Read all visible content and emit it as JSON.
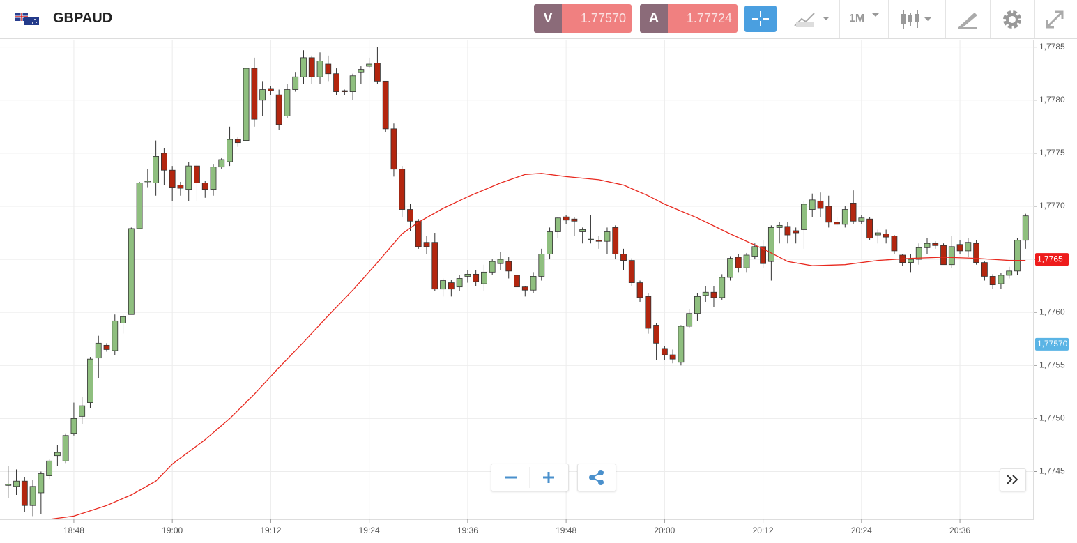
{
  "toolbar": {
    "symbol": "GBPAUD",
    "sell": {
      "letter": "V",
      "price": "1.77570"
    },
    "buy": {
      "letter": "A",
      "price": "1.77724"
    },
    "timeframe": "1M"
  },
  "chart_data": {
    "type": "candlestick",
    "x": [
      "18:40",
      "18:41",
      "18:42",
      "18:43",
      "18:44",
      "18:45",
      "18:46",
      "18:47",
      "18:48",
      "18:49",
      "18:50",
      "18:51",
      "18:52",
      "18:53",
      "18:54",
      "18:55",
      "18:56",
      "18:57",
      "18:58",
      "18:59",
      "19:00",
      "19:01",
      "19:02",
      "19:03",
      "19:04",
      "19:05",
      "19:06",
      "19:07",
      "19:08",
      "19:09",
      "19:10",
      "19:11",
      "19:12",
      "19:13",
      "19:14",
      "19:15",
      "19:16",
      "19:17",
      "19:18",
      "19:19",
      "19:20",
      "19:21",
      "19:22",
      "19:23",
      "19:24",
      "19:25",
      "19:26",
      "19:27",
      "19:28",
      "19:29",
      "19:30",
      "19:31",
      "19:32",
      "19:33",
      "19:34",
      "19:35",
      "19:36",
      "19:37",
      "19:38",
      "19:39",
      "19:40",
      "19:41",
      "19:42",
      "19:43",
      "19:44",
      "19:45",
      "19:46",
      "19:47",
      "19:48",
      "19:49",
      "19:50",
      "19:51",
      "19:52",
      "19:53",
      "19:54",
      "19:55",
      "19:56",
      "19:57",
      "19:58",
      "19:59",
      "20:00",
      "20:01",
      "20:02",
      "20:03",
      "20:04",
      "20:05",
      "20:06",
      "20:07",
      "20:08",
      "20:09",
      "20:10",
      "20:11",
      "20:12",
      "20:13",
      "20:14",
      "20:15",
      "20:16",
      "20:17",
      "20:18",
      "20:19",
      "20:20",
      "20:21",
      "20:22",
      "20:23",
      "20:24",
      "20:25",
      "20:26",
      "20:27",
      "20:28",
      "20:29",
      "20:30",
      "20:31",
      "20:32",
      "20:33",
      "20:34",
      "20:35",
      "20:36",
      "20:37",
      "20:38",
      "20:39",
      "20:40",
      "20:41",
      "20:42",
      "20:43",
      "20:44"
    ],
    "open": [
      1.77437,
      1.77436,
      1.77441,
      1.77418,
      1.7743,
      1.77446,
      1.77465,
      1.7746,
      1.77486,
      1.77502,
      1.77515,
      1.77557,
      1.77569,
      1.77564,
      1.7759,
      1.77598,
      1.77679,
      1.77723,
      1.77722,
      1.7775,
      1.77734,
      1.7772,
      1.77716,
      1.77738,
      1.77722,
      1.77716,
      1.77737,
      1.77742,
      1.77763,
      1.77762,
      1.7783,
      1.778,
      1.77811,
      1.77805,
      1.77785,
      1.7781,
      1.77822,
      1.7784,
      1.77822,
      1.77834,
      1.77825,
      1.77809,
      1.77808,
      1.77826,
      1.77832,
      1.77835,
      1.77818,
      1.77773,
      1.77735,
      1.77697,
      1.77686,
      1.77666,
      1.77666,
      1.77622,
      1.77628,
      1.77624,
      1.77634,
      1.77636,
      1.77627,
      1.77638,
      1.77646,
      1.77648,
      1.77635,
      1.77624,
      1.77621,
      1.77634,
      1.77655,
      1.77676,
      1.7769,
      1.77688,
      1.77676,
      1.77669,
      1.77668,
      1.77667,
      1.7768,
      1.77655,
      1.77649,
      1.77628,
      1.77615,
      1.77588,
      1.77566,
      1.7756,
      1.77553,
      1.77587,
      1.77599,
      1.77616,
      1.77619,
      1.77614,
      1.77633,
      1.77652,
      1.77642,
      1.77653,
      1.77662,
      1.77648,
      1.7768,
      1.77681,
      1.77677,
      1.77678,
      1.77697,
      1.77705,
      1.777,
      1.77685,
      1.77683,
      1.77703,
      1.77686,
      1.77688,
      1.77673,
      1.77674,
      1.77672,
      1.77654,
      1.77647,
      1.7765,
      1.77661,
      1.77665,
      1.77663,
      1.77645,
      1.77664,
      1.77658,
      1.77665,
      1.77647,
      1.77634,
      1.77627,
      1.77635,
      1.77639,
      1.77668
    ],
    "high": [
      1.77455,
      1.77452,
      1.77445,
      1.77442,
      1.7745,
      1.77462,
      1.77475,
      1.77486,
      1.77515,
      1.7752,
      1.77558,
      1.77578,
      1.77571,
      1.77598,
      1.77598,
      1.7768,
      1.77723,
      1.77735,
      1.77762,
      1.77755,
      1.77738,
      1.77723,
      1.77742,
      1.7774,
      1.77724,
      1.7774,
      1.77746,
      1.77775,
      1.77765,
      1.7783,
      1.7784,
      1.77818,
      1.77813,
      1.7781,
      1.77815,
      1.77826,
      1.77847,
      1.77842,
      1.77845,
      1.77842,
      1.7783,
      1.7781,
      1.77825,
      1.77832,
      1.7784,
      1.7785,
      1.77818,
      1.77778,
      1.77738,
      1.77702,
      1.77688,
      1.77672,
      1.77675,
      1.77632,
      1.77631,
      1.77635,
      1.7764,
      1.7764,
      1.77645,
      1.7765,
      1.77657,
      1.77652,
      1.77638,
      1.77625,
      1.77638,
      1.7766,
      1.7768,
      1.7769,
      1.77692,
      1.7769,
      1.7768,
      1.77692,
      1.77672,
      1.7768,
      1.77682,
      1.7766,
      1.77651,
      1.7763,
      1.77618,
      1.7759,
      1.77568,
      1.77565,
      1.77588,
      1.77603,
      1.77618,
      1.77625,
      1.77625,
      1.77636,
      1.77653,
      1.77655,
      1.77656,
      1.77665,
      1.77668,
      1.77682,
      1.77685,
      1.77685,
      1.7768,
      1.77705,
      1.77712,
      1.77713,
      1.7771,
      1.7769,
      1.777,
      1.77715,
      1.77692,
      1.7769,
      1.77678,
      1.77678,
      1.77673,
      1.77655,
      1.77655,
      1.77665,
      1.7767,
      1.77667,
      1.77665,
      1.77672,
      1.77668,
      1.7767,
      1.77668,
      1.77648,
      1.77636,
      1.77637,
      1.77643,
      1.7767,
      1.77693
    ],
    "low": [
      1.77425,
      1.77428,
      1.77412,
      1.77408,
      1.7741,
      1.77443,
      1.77455,
      1.77458,
      1.77484,
      1.77495,
      1.7751,
      1.77538,
      1.77563,
      1.7756,
      1.7758,
      1.77598,
      1.77679,
      1.77718,
      1.7771,
      1.7772,
      1.77705,
      1.7771,
      1.77705,
      1.77705,
      1.77708,
      1.7771,
      1.77735,
      1.77738,
      1.77756,
      1.77762,
      1.77775,
      1.77785,
      1.77805,
      1.77772,
      1.77783,
      1.77808,
      1.77815,
      1.77815,
      1.77815,
      1.77818,
      1.77805,
      1.77805,
      1.778,
      1.77815,
      1.7783,
      1.77815,
      1.7777,
      1.77728,
      1.7769,
      1.77677,
      1.7766,
      1.77655,
      1.7762,
      1.77615,
      1.77615,
      1.7762,
      1.77628,
      1.77625,
      1.7762,
      1.77635,
      1.7764,
      1.77632,
      1.7762,
      1.77615,
      1.77618,
      1.7763,
      1.7765,
      1.7767,
      1.77683,
      1.77672,
      1.77665,
      1.77665,
      1.7766,
      1.77655,
      1.7765,
      1.7764,
      1.77625,
      1.7761,
      1.7758,
      1.77555,
      1.77555,
      1.77552,
      1.7755,
      1.77585,
      1.77592,
      1.7761,
      1.77605,
      1.77612,
      1.7763,
      1.77638,
      1.77638,
      1.7765,
      1.77642,
      1.7763,
      1.77665,
      1.77665,
      1.77665,
      1.7766,
      1.7769,
      1.7769,
      1.7768,
      1.7768,
      1.7768,
      1.77683,
      1.77683,
      1.77668,
      1.77665,
      1.77665,
      1.77655,
      1.77644,
      1.77638,
      1.77645,
      1.77655,
      1.7766,
      1.77645,
      1.77642,
      1.77655,
      1.77652,
      1.77645,
      1.7763,
      1.77622,
      1.77622,
      1.77632,
      1.77635,
      1.7766
    ],
    "close": [
      1.77438,
      1.77441,
      1.77418,
      1.77436,
      1.77448,
      1.7746,
      1.77468,
      1.77484,
      1.775,
      1.77512,
      1.77556,
      1.77571,
      1.77565,
      1.77592,
      1.77596,
      1.77679,
      1.77722,
      1.77724,
      1.77747,
      1.77734,
      1.77718,
      1.77717,
      1.77738,
      1.77722,
      1.77716,
      1.77737,
      1.77744,
      1.77763,
      1.7776,
      1.7783,
      1.77782,
      1.7781,
      1.77809,
      1.77777,
      1.7781,
      1.77822,
      1.7784,
      1.77822,
      1.77837,
      1.77825,
      1.77808,
      1.77808,
      1.77823,
      1.77829,
      1.77834,
      1.77818,
      1.77773,
      1.77735,
      1.77697,
      1.77686,
      1.77662,
      1.77662,
      1.77622,
      1.7763,
      1.77622,
      1.77632,
      1.77636,
      1.77629,
      1.77638,
      1.77648,
      1.7765,
      1.77639,
      1.77624,
      1.77621,
      1.77634,
      1.77655,
      1.77676,
      1.77689,
      1.77687,
      1.77686,
      1.77678,
      1.77669,
      1.77667,
      1.77676,
      1.77655,
      1.77649,
      1.77628,
      1.77614,
      1.77585,
      1.77571,
      1.7756,
      1.77556,
      1.77587,
      1.77599,
      1.77615,
      1.77619,
      1.77614,
      1.77633,
      1.77651,
      1.77642,
      1.77654,
      1.77662,
      1.77646,
      1.7768,
      1.77682,
      1.77673,
      1.77675,
      1.77702,
      1.77706,
      1.77698,
      1.77685,
      1.77683,
      1.77697,
      1.77686,
      1.77689,
      1.7767,
      1.77675,
      1.77671,
      1.77658,
      1.77647,
      1.7765,
      1.77661,
      1.77665,
      1.77663,
      1.77645,
      1.77662,
      1.77658,
      1.77666,
      1.77647,
      1.77634,
      1.77626,
      1.77635,
      1.77639,
      1.77668,
      1.77691
    ],
    "up_color": "#8fbf7f",
    "down_color": "#b3260f",
    "moving_average": {
      "color": "#e8281e",
      "x": [
        "18:45",
        "18:48",
        "18:52",
        "18:55",
        "18:58",
        "19:00",
        "19:04",
        "19:07",
        "19:10",
        "19:13",
        "19:16",
        "19:19",
        "19:22",
        "19:25",
        "19:28",
        "19:30",
        "19:33",
        "19:36",
        "19:40",
        "19:43",
        "19:45",
        "19:48",
        "19:52",
        "19:55",
        "19:58",
        "20:00",
        "20:04",
        "20:08",
        "20:12",
        "20:15",
        "20:18",
        "20:22",
        "20:26",
        "20:30",
        "20:34",
        "20:38",
        "20:42",
        "20:44"
      ],
      "values": [
        1.77405,
        1.77408,
        1.77418,
        1.77428,
        1.77441,
        1.77457,
        1.7748,
        1.775,
        1.77523,
        1.77548,
        1.77572,
        1.77597,
        1.77621,
        1.77647,
        1.77674,
        1.77685,
        1.77698,
        1.77709,
        1.77722,
        1.7773,
        1.77731,
        1.77728,
        1.77725,
        1.7772,
        1.7771,
        1.77702,
        1.77689,
        1.77674,
        1.7766,
        1.77648,
        1.77644,
        1.77645,
        1.77649,
        1.77651,
        1.77652,
        1.77651,
        1.77649,
        1.77649
      ]
    },
    "xlim": [
      "18:39",
      "20:45"
    ],
    "xticks": [
      "18:48",
      "19:00",
      "19:12",
      "19:24",
      "19:36",
      "19:48",
      "20:00",
      "20:12",
      "20:24",
      "20:36"
    ],
    "ylim": [
      1.77405,
      1.77857
    ],
    "yticks": [
      {
        "value": 1.7745,
        "label": "1,7745"
      },
      {
        "value": 1.775,
        "label": "1,7750"
      },
      {
        "value": 1.7755,
        "label": "1,7755"
      },
      {
        "value": 1.776,
        "label": "1,7760"
      },
      {
        "value": 1.7765,
        "label": "1,7765"
      },
      {
        "value": 1.777,
        "label": "1,7770"
      },
      {
        "value": 1.7775,
        "label": "1,7775"
      },
      {
        "value": 1.778,
        "label": "1,7780"
      },
      {
        "value": 1.7785,
        "label": "1,7785"
      }
    ],
    "grid": true,
    "price_labels": [
      {
        "value": 1.7765,
        "label": "1,7765",
        "color": "#ee1c1c"
      },
      {
        "value": 1.7757,
        "label": "1,77570",
        "color": "#5ab4e5"
      }
    ]
  }
}
